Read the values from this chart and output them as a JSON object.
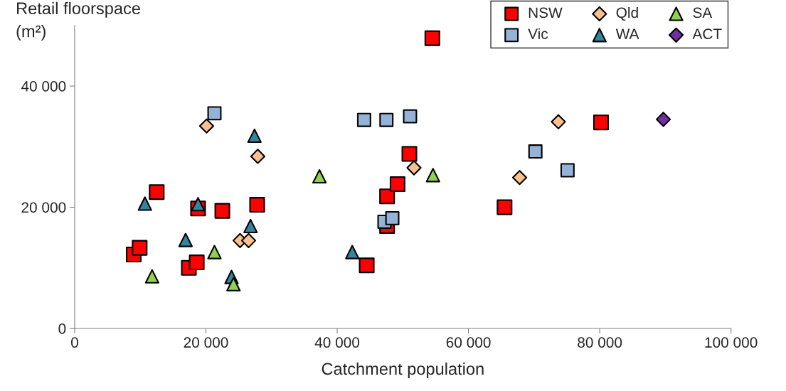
{
  "chart_data": {
    "type": "scatter",
    "xlabel": "Catchment population",
    "ylabel": "Retail floorspace\n(m²)",
    "xlim": [
      0,
      100000
    ],
    "ylim": [
      0,
      50000
    ],
    "xticks": [
      {
        "value": 0,
        "label": "0"
      },
      {
        "value": 20000,
        "label": "20 000"
      },
      {
        "value": 40000,
        "label": "40 000"
      },
      {
        "value": 60000,
        "label": "60 000"
      },
      {
        "value": 80000,
        "label": "80 000"
      },
      {
        "value": 100000,
        "label": "100 000"
      }
    ],
    "yticks": [
      {
        "value": 0,
        "label": "0"
      },
      {
        "value": 20000,
        "label": "20 000"
      },
      {
        "value": 40000,
        "label": "40 000"
      }
    ],
    "grid": false,
    "legend": "top right",
    "series": [
      {
        "name": "NSW",
        "color": "#ff0000",
        "marker": "square",
        "x": [
          9000,
          9900,
          12500,
          17400,
          18600,
          18800,
          22500,
          27800,
          44500,
          47600,
          47600,
          49200,
          51000,
          54500,
          65500,
          80200
        ],
        "values": [
          12200,
          13300,
          22500,
          10000,
          10900,
          19800,
          19400,
          20400,
          10400,
          16900,
          21800,
          23800,
          28800,
          47900,
          20000,
          34000
        ]
      },
      {
        "name": "Vic",
        "color": "#95b3d7",
        "marker": "square",
        "x": [
          21300,
          44100,
          47500,
          51100,
          47200,
          48400,
          70200,
          75100
        ],
        "values": [
          35500,
          34400,
          34400,
          35000,
          17600,
          18200,
          29200,
          26100
        ]
      },
      {
        "name": "Qld",
        "color": "#fac090",
        "marker": "diamond",
        "x": [
          20100,
          27900,
          25200,
          26500,
          51700,
          67800,
          73700
        ],
        "values": [
          33400,
          28400,
          14500,
          14500,
          26500,
          24900,
          34100
        ]
      },
      {
        "name": "WA",
        "color": "#31859c",
        "marker": "triangle",
        "x": [
          10700,
          18800,
          27400,
          16900,
          26800,
          23900,
          42300
        ],
        "values": [
          20600,
          20500,
          31800,
          14600,
          16900,
          8500,
          12600
        ]
      },
      {
        "name": "SA",
        "color": "#92d050",
        "marker": "triangle",
        "x": [
          11800,
          21300,
          24200,
          37300,
          54600
        ],
        "values": [
          8600,
          12600,
          7300,
          25100,
          25300
        ]
      },
      {
        "name": "ACT",
        "color": "#7030a0",
        "marker": "diamond",
        "x": [
          89700
        ],
        "values": [
          34500
        ]
      }
    ]
  }
}
